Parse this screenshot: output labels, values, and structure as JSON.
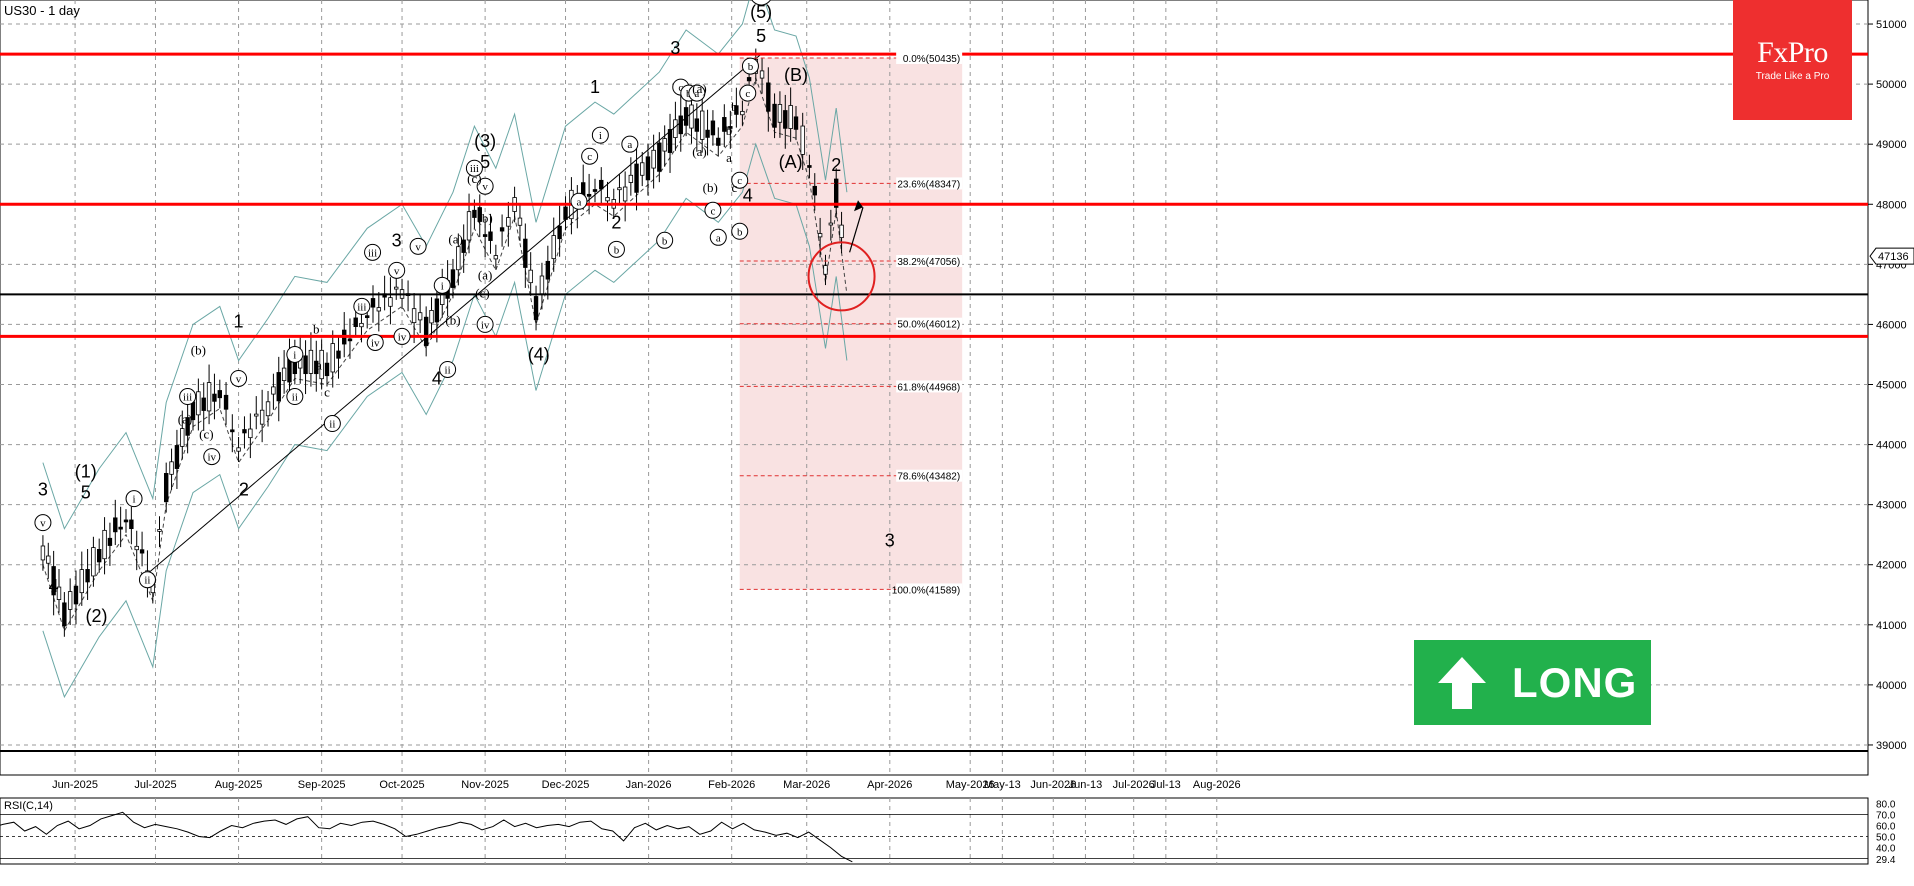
{
  "header": {
    "symbol": "US30 - 1 day",
    "rsi_label": "RSI(C,14)"
  },
  "logo": {
    "brand": "FxPro",
    "tagline": "Trade Like a Pro",
    "color": "#ee2f2f"
  },
  "signal": {
    "label": "LONG",
    "icon": "arrow-up-icon",
    "color": "#22b14c"
  },
  "chart_data": [
    {
      "type": "candlestick",
      "title": "US30 - 1 day",
      "x_labels": [
        "Jun-2025",
        "Jul-2025",
        "Aug-2025",
        "Sep-2025",
        "Oct-2025",
        "Nov-2025",
        "Dec-2025",
        "Jan-2026",
        "Feb-2026",
        "Mar-2026",
        "Apr-2026",
        "May-2026",
        "May-13",
        "Jun-2026",
        "Jun-13",
        "Jul-2026",
        "Jul-13",
        "Aug-2026"
      ],
      "y_ticks": [
        39000,
        40000,
        41000,
        42000,
        43000,
        44000,
        45000,
        46000,
        47000,
        48000,
        49000,
        50000,
        51000
      ],
      "ylim": [
        38500,
        51400
      ],
      "current_price": "47136",
      "grid": true,
      "trend_points": [
        {
          "x": "2025-05-20",
          "y": 42300
        },
        {
          "x": "2025-05-28",
          "y": 41200
        },
        {
          "x": "2025-06-10",
          "y": 42200
        },
        {
          "x": "2025-06-20",
          "y": 42800
        },
        {
          "x": "2025-06-30",
          "y": 41700
        },
        {
          "x": "2025-07-05",
          "y": 43300
        },
        {
          "x": "2025-07-15",
          "y": 44600
        },
        {
          "x": "2025-07-25",
          "y": 44900
        },
        {
          "x": "2025-08-01",
          "y": 44000
        },
        {
          "x": "2025-08-12",
          "y": 44700
        },
        {
          "x": "2025-08-22",
          "y": 45400
        },
        {
          "x": "2025-09-03",
          "y": 45300
        },
        {
          "x": "2025-09-18",
          "y": 46200
        },
        {
          "x": "2025-10-01",
          "y": 46600
        },
        {
          "x": "2025-10-10",
          "y": 45900
        },
        {
          "x": "2025-10-20",
          "y": 46800
        },
        {
          "x": "2025-10-28",
          "y": 47900
        },
        {
          "x": "2025-11-05",
          "y": 47200
        },
        {
          "x": "2025-11-12",
          "y": 48100
        },
        {
          "x": "2025-11-20",
          "y": 46300
        },
        {
          "x": "2025-12-01",
          "y": 47900
        },
        {
          "x": "2025-12-12",
          "y": 48300
        },
        {
          "x": "2025-12-19",
          "y": 48100
        },
        {
          "x": "2026-01-05",
          "y": 48800
        },
        {
          "x": "2026-01-15",
          "y": 49500
        },
        {
          "x": "2026-01-27",
          "y": 49100
        },
        {
          "x": "2026-02-05",
          "y": 49600
        },
        {
          "x": "2026-02-10",
          "y": 50400
        },
        {
          "x": "2026-02-17",
          "y": 49500
        },
        {
          "x": "2026-02-25",
          "y": 49400
        },
        {
          "x": "2026-03-02",
          "y": 48700
        },
        {
          "x": "2026-03-08",
          "y": 47000
        },
        {
          "x": "2026-03-12",
          "y": 48200
        },
        {
          "x": "2026-03-16",
          "y": 46800
        }
      ],
      "horizontal_lines": [
        {
          "name": "resistance-top",
          "value": 50500,
          "color": "#ff0000"
        },
        {
          "name": "resistance-mid",
          "value": 48000,
          "color": "#ff0000"
        },
        {
          "name": "support-black",
          "value": 46500,
          "color": "#000000"
        },
        {
          "name": "support-red",
          "value": 45800,
          "color": "#ff0000"
        },
        {
          "name": "support-low",
          "value": 38900,
          "color": "#000000"
        }
      ],
      "fibonacci": [
        {
          "label": "0.0%(50435)",
          "value": 50435
        },
        {
          "label": "23.6%(48347)",
          "value": 48347
        },
        {
          "label": "38.2%(47056)",
          "value": 47056
        },
        {
          "label": "50.0%(46012)",
          "value": 46012
        },
        {
          "label": "61.8%(44968)",
          "value": 44968
        },
        {
          "label": "78.6%(43482)",
          "value": 43482
        },
        {
          "label": "100.0%(41589)",
          "value": 41589
        }
      ],
      "fib_zone": {
        "from_date": "2026-02-04",
        "to_date": "2026-04-28",
        "top": 50435,
        "bottom": 41589
      },
      "wave_labels": [
        {
          "text": "3",
          "x": "2025-05-20",
          "y": 43150
        },
        {
          "text": "(1)",
          "x": "2025-06-05",
          "y": 43450
        },
        {
          "text": "5",
          "x": "2025-06-05",
          "y": 43100
        },
        {
          "text": "4",
          "x": "2025-05-24",
          "y": 41550
        },
        {
          "text": "(2)",
          "x": "2025-06-09",
          "y": 41050
        },
        {
          "text": "2",
          "x": "2025-08-03",
          "y": 43150
        },
        {
          "text": "1",
          "x": "2025-08-01",
          "y": 45950
        },
        {
          "text": "3",
          "x": "2025-09-29",
          "y": 47300
        },
        {
          "text": "4",
          "x": "2025-10-14",
          "y": 45000
        },
        {
          "text": "(3)",
          "x": "2025-11-01",
          "y": 48950
        },
        {
          "text": "5",
          "x": "2025-11-01",
          "y": 48600
        },
        {
          "text": "(4)",
          "x": "2025-11-21",
          "y": 45400
        },
        {
          "text": "1",
          "x": "2025-12-12",
          "y": 49850
        },
        {
          "text": "2",
          "x": "2025-12-20",
          "y": 47600
        },
        {
          "text": "3",
          "x": "2026-01-11",
          "y": 50500
        },
        {
          "text": "4",
          "x": "2026-02-07",
          "y": 48050
        },
        {
          "text": "(5)",
          "x": "2026-02-12",
          "y": 51100
        },
        {
          "text": "5",
          "x": "2026-02-12",
          "y": 50700
        },
        {
          "text": "(B)",
          "x": "2026-02-25",
          "y": 50050
        },
        {
          "text": "(A)",
          "x": "2026-02-23",
          "y": 48600
        },
        {
          "text": "2",
          "x": "2026-03-12",
          "y": 48550
        },
        {
          "text": "3",
          "x": "2026-04-01",
          "y": 42300
        }
      ],
      "circled_labels": [
        {
          "text": "1",
          "x": "2026-02-12",
          "y": 51500
        },
        {
          "text": "v",
          "x": "2025-05-20",
          "y": 42700
        },
        {
          "text": "ii",
          "x": "2025-06-28",
          "y": 41750
        },
        {
          "text": "i",
          "x": "2025-06-23",
          "y": 43100
        },
        {
          "text": "iii",
          "x": "2025-07-13",
          "y": 44800
        },
        {
          "text": "iv",
          "x": "2025-07-22",
          "y": 43800
        },
        {
          "text": "v",
          "x": "2025-08-01",
          "y": 45100
        },
        {
          "text": "ii",
          "x": "2025-08-22",
          "y": 44800
        },
        {
          "text": "i",
          "x": "2025-08-22",
          "y": 45500
        },
        {
          "text": "ii",
          "x": "2025-09-05",
          "y": 44350
        },
        {
          "text": "iii",
          "x": "2025-09-16",
          "y": 46300
        },
        {
          "text": "iv",
          "x": "2025-09-21",
          "y": 45700
        },
        {
          "text": "v",
          "x": "2025-09-29",
          "y": 46900
        },
        {
          "text": "iii",
          "x": "2025-09-20",
          "y": 47200
        },
        {
          "text": "v",
          "x": "2025-10-07",
          "y": 47300
        },
        {
          "text": "iv",
          "x": "2025-10-01",
          "y": 45800
        },
        {
          "text": "i",
          "x": "2025-10-16",
          "y": 46650
        },
        {
          "text": "ii",
          "x": "2025-10-18",
          "y": 45250
        },
        {
          "text": "iii",
          "x": "2025-10-28",
          "y": 48600
        },
        {
          "text": "v",
          "x": "2025-11-01",
          "y": 48300
        },
        {
          "text": "iv",
          "x": "2025-11-01",
          "y": 46000
        },
        {
          "text": "i",
          "x": "2025-12-14",
          "y": 49150
        },
        {
          "text": "b",
          "x": "2025-12-20",
          "y": 47250
        },
        {
          "text": "a",
          "x": "2025-12-06",
          "y": 48050
        },
        {
          "text": "c",
          "x": "2025-12-10",
          "y": 48800
        },
        {
          "text": "a",
          "x": "2025-12-25",
          "y": 49000
        },
        {
          "text": "b",
          "x": "2026-01-07",
          "y": 47400
        },
        {
          "text": "c",
          "x": "2026-01-13",
          "y": 49950
        },
        {
          "text": "b",
          "x": "2026-01-16",
          "y": 49850
        },
        {
          "text": "a",
          "x": "2026-01-19",
          "y": 49850
        },
        {
          "text": "c",
          "x": "2026-01-25",
          "y": 47900
        },
        {
          "text": "a",
          "x": "2026-01-27",
          "y": 47450
        },
        {
          "text": "b",
          "x": "2026-02-08",
          "y": 50300
        },
        {
          "text": "c",
          "x": "2026-02-07",
          "y": 49850
        },
        {
          "text": "c",
          "x": "2026-02-04",
          "y": 48400
        },
        {
          "text": "b",
          "x": "2026-02-04",
          "y": 47550
        }
      ],
      "plain_sublabels": [
        {
          "text": "(c)",
          "x": "2025-10-28",
          "y": 48350
        },
        {
          "text": "(b)",
          "x": "2025-11-01",
          "y": 47700
        },
        {
          "text": "(a)",
          "x": "2025-10-21",
          "y": 47350
        },
        {
          "text": "(c)",
          "x": "2025-10-31",
          "y": 46450
        },
        {
          "text": "(a)",
          "x": "2025-11-01",
          "y": 46750
        },
        {
          "text": "(b)",
          "x": "2025-10-20",
          "y": 46000
        },
        {
          "text": "(b)",
          "x": "2025-07-17",
          "y": 45500
        },
        {
          "text": "(a)",
          "x": "2025-07-12",
          "y": 44350
        },
        {
          "text": "(c)",
          "x": "2025-07-20",
          "y": 44100
        },
        {
          "text": "(a)",
          "x": "2026-01-20",
          "y": 48800
        },
        {
          "text": "(b)",
          "x": "2026-01-24",
          "y": 48200
        },
        {
          "text": "(a)",
          "x": "2026-01-20",
          "y": 49850
        },
        {
          "text": "b",
          "x": "2025-08-30",
          "y": 45850
        },
        {
          "text": "a",
          "x": "2025-08-31",
          "y": 45250
        },
        {
          "text": "c",
          "x": "2025-09-03",
          "y": 44800
        },
        {
          "text": "c",
          "x": "2026-02-02",
          "y": 48200
        },
        {
          "text": "b",
          "x": "2026-01-31",
          "y": 49150
        },
        {
          "text": "a",
          "x": "2026-01-31",
          "y": 48700
        },
        {
          "text": "b",
          "x": "2026-02-02",
          "y": 49550
        }
      ]
    },
    {
      "type": "line",
      "title": "RSI(C,14)",
      "y_ticks": [
        "80.0",
        "70.0",
        "60.0",
        "50.0",
        "40.0",
        "29.4"
      ],
      "ylim": [
        25,
        85
      ],
      "levels": [
        70,
        50,
        30
      ],
      "values": [
        58,
        61,
        63,
        55,
        59,
        52,
        60,
        64,
        57,
        60,
        66,
        69,
        72,
        63,
        58,
        61,
        59,
        57,
        54,
        50,
        49,
        55,
        60,
        58,
        62,
        64,
        65,
        61,
        66,
        68,
        58,
        57,
        62,
        60,
        63,
        64,
        61,
        57,
        50,
        52,
        55,
        58,
        60,
        63,
        61,
        56,
        59,
        65,
        59,
        62,
        58,
        60,
        61,
        59,
        63,
        64,
        57,
        55,
        46,
        58,
        62,
        56,
        60,
        57,
        59,
        52,
        55,
        63,
        57,
        62,
        56,
        54,
        51,
        53,
        49,
        54,
        47,
        40,
        32,
        27
      ]
    }
  ]
}
